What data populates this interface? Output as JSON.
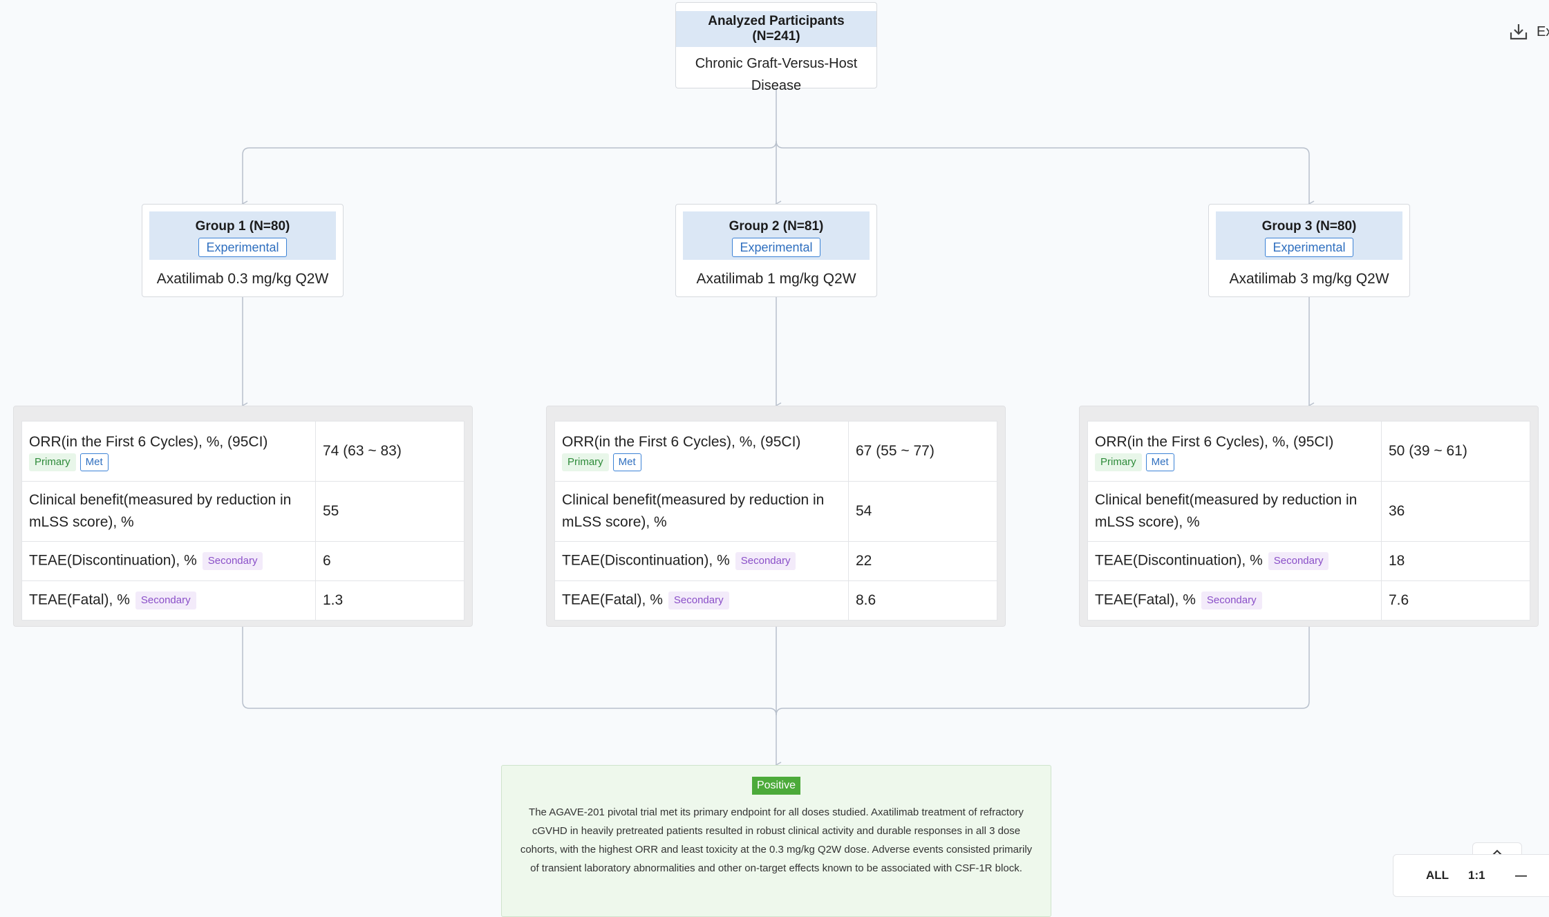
{
  "root": {
    "title": "Analyzed Participants (N=241)",
    "body": "Chronic Graft-Versus-Host Disease"
  },
  "groups": [
    {
      "title": "Group 1 (N=80)",
      "tag": "Experimental",
      "intervention": "Axatilimab 0.3 mg/kg Q2W"
    },
    {
      "title": "Group 2 (N=81)",
      "tag": "Experimental",
      "intervention": "Axatilimab 1 mg/kg Q2W"
    },
    {
      "title": "Group 3 (N=80)",
      "tag": "Experimental",
      "intervention": "Axatilimab 3 mg/kg Q2W"
    }
  ],
  "outcome_labels": {
    "orr": "ORR(in the First 6 Cycles), %, (95CI)",
    "clinical_benefit": "Clinical benefit(measured by reduction in mLSS score), %",
    "teae_disc": "TEAE(Discontinuation), %",
    "teae_fatal": "TEAE(Fatal), %"
  },
  "tags": {
    "primary": "Primary",
    "met": "Met",
    "secondary": "Secondary"
  },
  "results": [
    {
      "orr": "74 (63 ~ 83)",
      "clinical_benefit": "55",
      "teae_disc": "6",
      "teae_fatal": "1.3"
    },
    {
      "orr": "67 (55 ~ 77)",
      "clinical_benefit": "54",
      "teae_disc": "22",
      "teae_fatal": "8.6"
    },
    {
      "orr": "50 (39 ~ 61)",
      "clinical_benefit": "36",
      "teae_disc": "18",
      "teae_fatal": "7.6"
    }
  ],
  "conclusion": {
    "badge": "Positive",
    "text": "The AGAVE-201 pivotal trial met its primary endpoint for all doses studied. Axatilimab treatment of refractory cGVHD in heavily pretreated patients resulted in robust clinical activity and durable responses in all 3 dose cohorts, with the highest ORR and least toxicity at the 0.3 mg/kg Q2W dose. Adverse events consisted primarily of transient laboratory abnormalities and other on-target effects known to be associated with CSF-1R block."
  },
  "toolbar": {
    "export_label": "Ex",
    "zoom_all": "ALL",
    "zoom_1to1": "1:1",
    "zoom_out": "—"
  },
  "colors": {
    "connector": "#b8c0cc",
    "header_fill": "#dbe7f5",
    "positive": "#4caa3a"
  }
}
